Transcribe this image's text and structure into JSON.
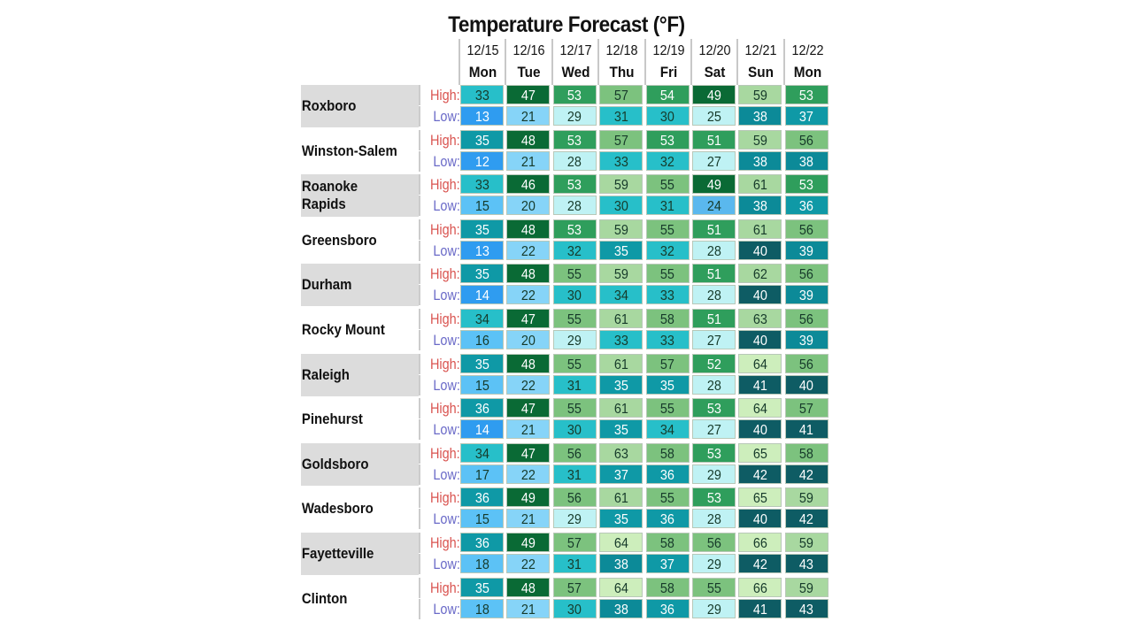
{
  "chart_data": {
    "type": "heatmap",
    "title": "Temperature Forecast (°F)",
    "dates": [
      "12/15",
      "12/16",
      "12/17",
      "12/18",
      "12/19",
      "12/20",
      "12/21",
      "12/22"
    ],
    "days": [
      "Mon",
      "Tue",
      "Wed",
      "Thu",
      "Fri",
      "Sat",
      "Sun",
      "Mon"
    ],
    "high_label": "High:",
    "low_label": "Low:",
    "rows": [
      {
        "city": "Roxboro",
        "high": [
          33,
          47,
          53,
          57,
          54,
          49,
          59,
          53
        ],
        "low": [
          13,
          21,
          29,
          31,
          30,
          25,
          38,
          37
        ]
      },
      {
        "city": "Winston-Salem",
        "high": [
          35,
          48,
          53,
          57,
          53,
          51,
          59,
          56
        ],
        "low": [
          12,
          21,
          28,
          33,
          32,
          27,
          38,
          38
        ]
      },
      {
        "city": "Roanoke Rapids",
        "high": [
          33,
          46,
          53,
          59,
          55,
          49,
          61,
          53
        ],
        "low": [
          15,
          20,
          28,
          30,
          31,
          24,
          38,
          36
        ]
      },
      {
        "city": "Greensboro",
        "high": [
          35,
          48,
          53,
          59,
          55,
          51,
          61,
          56
        ],
        "low": [
          13,
          22,
          32,
          35,
          32,
          28,
          40,
          39
        ]
      },
      {
        "city": "Durham",
        "high": [
          35,
          48,
          55,
          59,
          55,
          51,
          62,
          56
        ],
        "low": [
          14,
          22,
          30,
          34,
          33,
          28,
          40,
          39
        ]
      },
      {
        "city": "Rocky Mount",
        "high": [
          34,
          47,
          55,
          61,
          58,
          51,
          63,
          56
        ],
        "low": [
          16,
          20,
          29,
          33,
          33,
          27,
          40,
          39
        ]
      },
      {
        "city": "Raleigh",
        "high": [
          35,
          48,
          55,
          61,
          57,
          52,
          64,
          56
        ],
        "low": [
          15,
          22,
          31,
          35,
          35,
          28,
          41,
          40
        ]
      },
      {
        "city": "Pinehurst",
        "high": [
          36,
          47,
          55,
          61,
          55,
          53,
          64,
          57
        ],
        "low": [
          14,
          21,
          30,
          35,
          34,
          27,
          40,
          41
        ]
      },
      {
        "city": "Goldsboro",
        "high": [
          34,
          47,
          56,
          63,
          58,
          53,
          65,
          58
        ],
        "low": [
          17,
          22,
          31,
          37,
          36,
          29,
          42,
          42
        ]
      },
      {
        "city": "Wadesboro",
        "high": [
          36,
          49,
          56,
          61,
          55,
          53,
          65,
          59
        ],
        "low": [
          15,
          21,
          29,
          35,
          36,
          28,
          40,
          42
        ]
      },
      {
        "city": "Fayetteville",
        "high": [
          36,
          49,
          57,
          64,
          58,
          56,
          66,
          59
        ],
        "low": [
          18,
          22,
          31,
          38,
          37,
          29,
          42,
          43
        ]
      },
      {
        "city": "Clinton",
        "high": [
          35,
          48,
          57,
          64,
          58,
          55,
          66,
          59
        ],
        "low": [
          18,
          21,
          30,
          38,
          36,
          29,
          41,
          43
        ]
      }
    ],
    "color_scale": [
      {
        "max": 14,
        "color": "#2f9cf0"
      },
      {
        "max": 18,
        "color": "#5cc2f6"
      },
      {
        "max": 22,
        "color": "#86d4f8"
      },
      {
        "max": 24,
        "color": "#5ab8ee"
      },
      {
        "max": 29,
        "color": "#bff2f4"
      },
      {
        "max": 34,
        "color": "#27bfc9"
      },
      {
        "max": 37,
        "color": "#0f99a6"
      },
      {
        "max": 39,
        "color": "#0c8a98"
      },
      {
        "max": 44,
        "color": "#0e5c64"
      },
      {
        "max": 49,
        "color": "#0a6a35"
      },
      {
        "max": 54,
        "color": "#2f9e5c"
      },
      {
        "max": 58,
        "color": "#7cc27e"
      },
      {
        "max": 63,
        "color": "#a8d8a0"
      },
      {
        "max": 70,
        "color": "#cdeebc"
      }
    ]
  }
}
